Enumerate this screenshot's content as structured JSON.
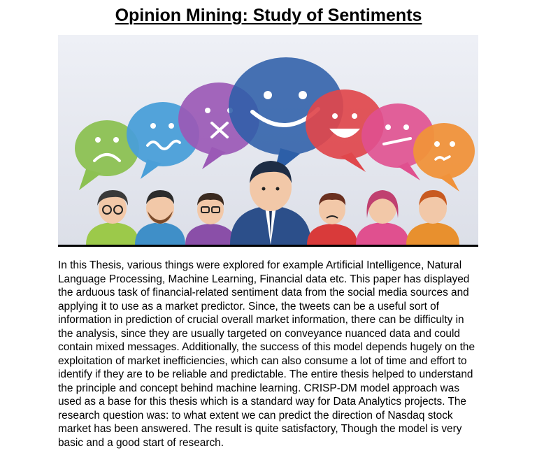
{
  "document": {
    "title": "Opinion Mining: Study of Sentiments",
    "body": "In this Thesis, various things were explored for example Artificial Intelligence, Natural Language Processing, Machine Learning, Financial data etc. This paper has displayed the arduous task of financial-related sentiment data from the social media sources and applying it to use as a market predictor. Since, the tweets can be a useful sort of information in prediction of crucial overall market information, there can be difficulty in the analysis, since they are usually targeted on conveyance nuanced data and could contain mixed messages. Additionally, the success of this model depends hugely on the exploitation of market inefficiencies, which can also consume a lot of time and effort to identify if they are to be reliable and predictable. The entire thesis helped to understand the principle and concept behind machine learning. CRISP-DM model approach was used as a base for this thesis which is a standard way for Data Analytics projects. The research question was: to what extent we can predict the direction of Nasdaq stock market has been answered. The result is quite satisfactory, Though the model is very basic and a good start of research."
  },
  "illustration": {
    "bubbles": [
      {
        "icon": "sad-face-icon",
        "color": "#8cc152"
      },
      {
        "icon": "confused-face-icon",
        "color": "#4a9fd8"
      },
      {
        "icon": "dizzy-face-icon",
        "color": "#9b59b6"
      },
      {
        "icon": "happy-face-icon",
        "color": "#2d5fa8"
      },
      {
        "icon": "laughing-face-icon",
        "color": "#e0474c"
      },
      {
        "icon": "neutral-face-icon",
        "color": "#e0508f"
      },
      {
        "icon": "worried-face-icon",
        "color": "#f0923a"
      }
    ],
    "people": [
      {
        "icon": "person-glasses-woman-icon",
        "color": "#9cc94a"
      },
      {
        "icon": "person-bearded-man-icon",
        "color": "#3f8fc8"
      },
      {
        "icon": "person-glasses-man-icon",
        "color": "#8a4fa8"
      },
      {
        "icon": "person-businessman-icon",
        "color": "#2c4f8a"
      },
      {
        "icon": "person-frowning-man-icon",
        "color": "#d93a3a"
      },
      {
        "icon": "person-woman-icon",
        "color": "#e0508f"
      },
      {
        "icon": "person-man-icon",
        "color": "#e8902e"
      }
    ]
  }
}
